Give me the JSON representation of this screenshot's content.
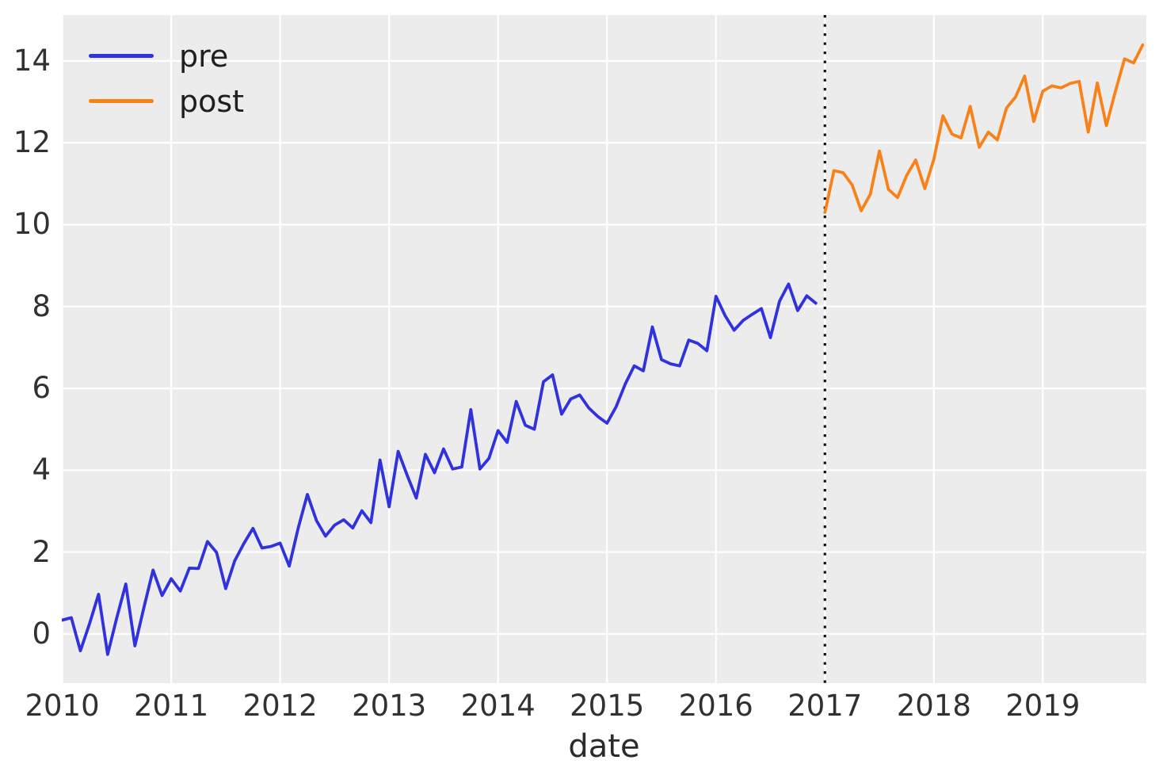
{
  "figure": {
    "background": "#ffffff",
    "plot_background": "#ececec",
    "grid_color": "#ffffff",
    "tick_color": "#313131",
    "accent_pre": "#3032de",
    "accent_post": "#f8821a",
    "vline_color": "#111111"
  },
  "legend": {
    "position": "upper-left",
    "entries": [
      {
        "label": "pre",
        "color": "#3032de"
      },
      {
        "label": "post",
        "color": "#f8821a"
      }
    ]
  },
  "chart_data": {
    "type": "line",
    "title": "",
    "xlabel": "date",
    "ylabel": "",
    "grid": true,
    "frequency": "monthly",
    "x_tick_labels": [
      "2010",
      "2011",
      "2012",
      "2013",
      "2014",
      "2015",
      "2016",
      "2017",
      "2018",
      "2019"
    ],
    "y_tick_labels": [
      "0",
      "2",
      "4",
      "6",
      "8",
      "10",
      "12",
      "14"
    ],
    "y_tick_values": [
      0,
      2,
      4,
      6,
      8,
      10,
      12,
      14
    ],
    "ylim": [
      -1.2,
      15.12
    ],
    "xlim_month_index": [
      -0.05,
      119.4
    ],
    "vline": {
      "x": "2017-01",
      "style": "dotted",
      "color": "#111111"
    },
    "series": [
      {
        "name": "pre",
        "color": "#3032de",
        "start": "2010-01",
        "values": [
          0.34,
          0.4,
          -0.41,
          0.25,
          0.97,
          -0.5,
          0.39,
          1.22,
          -0.29,
          0.65,
          1.56,
          0.94,
          1.35,
          1.05,
          1.61,
          1.6,
          2.26,
          1.99,
          1.11,
          1.79,
          2.21,
          2.58,
          2.1,
          2.14,
          2.22,
          1.66,
          2.6,
          3.41,
          2.77,
          2.39,
          2.66,
          2.79,
          2.59,
          3.01,
          2.72,
          4.25,
          3.11,
          4.46,
          3.87,
          3.32,
          4.39,
          3.94,
          4.52,
          4.03,
          4.08,
          5.48,
          4.03,
          4.29,
          4.97,
          4.68,
          5.68,
          5.1,
          5.0,
          6.16,
          6.33,
          5.37,
          5.74,
          5.84,
          5.52,
          5.31,
          5.15,
          5.55,
          6.1,
          6.55,
          6.43,
          7.5,
          6.7,
          6.6,
          6.55,
          7.18,
          7.1,
          6.92,
          8.25,
          7.78,
          7.42,
          7.66,
          7.81,
          7.95,
          7.24,
          8.13,
          8.55,
          7.9,
          8.26,
          8.08
        ]
      },
      {
        "name": "post",
        "color": "#f8821a",
        "start": "2017-01",
        "values": [
          10.3,
          11.32,
          11.27,
          10.97,
          10.34,
          10.74,
          11.8,
          10.86,
          10.66,
          11.2,
          11.58,
          10.88,
          11.6,
          12.66,
          12.21,
          12.12,
          12.89,
          11.89,
          12.26,
          12.07,
          12.85,
          13.12,
          13.63,
          12.52,
          13.26,
          13.39,
          13.34,
          13.45,
          13.5,
          12.26,
          13.46,
          12.42,
          13.26,
          14.05,
          13.95,
          14.39
        ]
      }
    ]
  }
}
